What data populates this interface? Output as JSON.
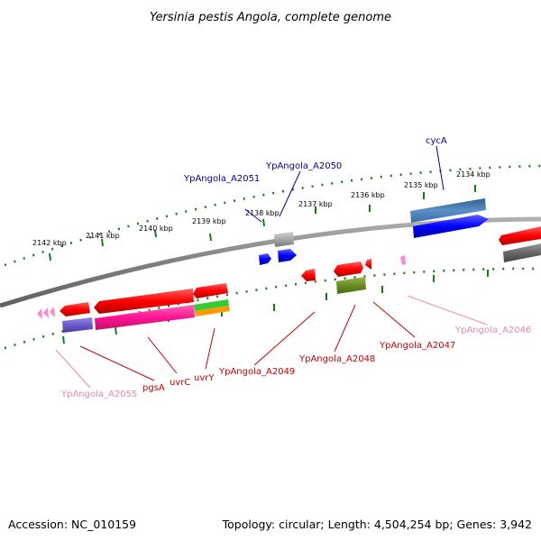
{
  "title": "Yersinia pestis Angola, complete genome",
  "footer": {
    "accession": "Accession: NC_010159",
    "summary": "Topology: circular; Length: 4,504,254 bp; Genes: 3,942"
  },
  "scale_labels": [
    "2142 kbp",
    "2141 kbp",
    "2140 kbp",
    "2139 kbp",
    "2138 kbp",
    "2137 kbp",
    "2136 kbp",
    "2135 kbp",
    "2134 kbp"
  ],
  "gene_labels": {
    "cycA": "cycA",
    "YpAngola_A2050": "YpAngola_A2050",
    "YpAngola_A2051": "YpAngola_A2051",
    "YpAngola_A2046": "YpAngola_A2046",
    "YpAngola_A2047": "YpAngola_A2047",
    "YpAngola_A2048": "YpAngola_A2048",
    "YpAngola_A2049": "YpAngola_A2049",
    "uvrY": "uvrY",
    "uvrC": "uvrC",
    "pgsA": "pgsA",
    "YpAngola_A2055": "YpAngola_A2055"
  },
  "colors": {
    "backbone": "#888888",
    "tick": "#1a7a1a",
    "label_blue": "#0000aa",
    "label_red": "#cc0000",
    "label_pink": "#ee88aa",
    "gene_red": "#ff0000",
    "gene_blue": "#0000ff",
    "gene_steelblue": "#4a7fb5",
    "gene_grey": "#a0a0a0",
    "gene_dark_grey": "#666666",
    "gene_olive": "#6b8e23",
    "gene_magenta": "#ff1493",
    "gene_purple": "#6a5acd",
    "gene_green": "#33cc33",
    "gene_orange": "#ff9900",
    "gene_pink": "#ff88cc"
  }
}
